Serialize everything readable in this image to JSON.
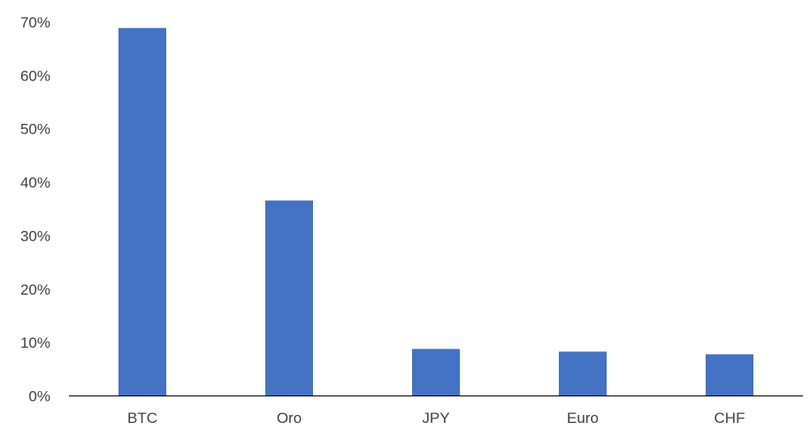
{
  "chart_data": {
    "type": "bar",
    "categories": [
      "BTC",
      "Oro",
      "JPY",
      "Euro",
      "CHF"
    ],
    "values": [
      68.9,
      36.6,
      8.8,
      8.3,
      7.8
    ],
    "ylim": [
      0,
      70
    ],
    "yticks": [
      0,
      10,
      20,
      30,
      40,
      50,
      60,
      70
    ],
    "ytick_labels": [
      "0%",
      "10%",
      "20%",
      "30%",
      "40%",
      "50%",
      "60%",
      "70%"
    ],
    "grid": false,
    "legend": "none",
    "bar_color": "#4472C4"
  }
}
